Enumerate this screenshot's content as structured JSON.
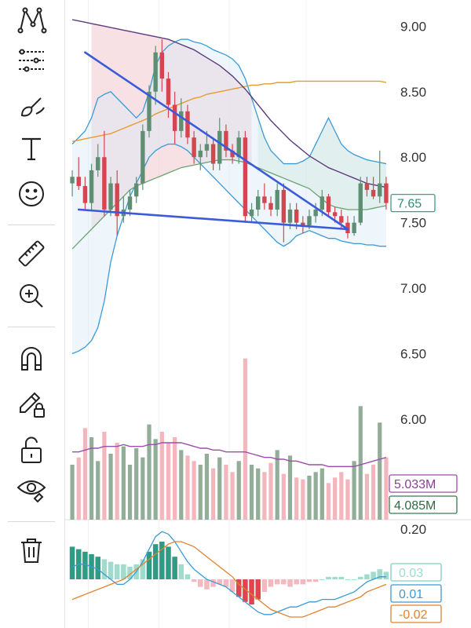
{
  "toolbar": {
    "tools": [
      {
        "icon": "pattern-tool-icon"
      },
      {
        "icon": "indicator-lines-icon"
      },
      {
        "icon": "brush-icon"
      },
      {
        "icon": "text-tool-icon"
      },
      {
        "icon": "emoji-icon"
      },
      {
        "icon": "ruler-icon"
      },
      {
        "icon": "zoom-in-icon"
      },
      {
        "icon": "magnet-icon"
      },
      {
        "icon": "pencil-lock-icon"
      },
      {
        "icon": "unlock-icon"
      },
      {
        "icon": "eye-icon"
      },
      {
        "icon": "trash-icon"
      }
    ]
  },
  "colors": {
    "up": "#5f8f72",
    "down": "#d3464f",
    "ma_orange": "#e79a2f",
    "ma_purple": "#5b3b7a",
    "bb_blue": "#3a9bd5",
    "trend_blue": "#3b5bd9",
    "cloud_red": "#f3c9cf",
    "cloud_green": "#cfe6d4",
    "vol_up": "#7f9f86",
    "vol_down": "#f2a9b2",
    "vol_ma": "#9b4fa8",
    "macd_line": "#3a9bd5",
    "signal_line": "#e0822e"
  },
  "chart_data": {
    "type": "candlestick",
    "price_axis": {
      "ticks": [
        "9.00",
        "8.50",
        "8.00",
        "7.50",
        "7.00",
        "6.50",
        "6.00"
      ],
      "range": [
        5.7,
        9.2
      ],
      "last_price": "7.65"
    },
    "candles": [
      [
        7.8,
        7.9,
        7.7,
        7.85
      ],
      [
        7.85,
        8.0,
        7.75,
        7.78
      ],
      [
        7.78,
        7.85,
        7.6,
        7.65
      ],
      [
        7.65,
        7.95,
        7.6,
        7.9
      ],
      [
        7.9,
        8.1,
        7.85,
        8.0
      ],
      [
        8.0,
        8.2,
        7.55,
        7.6
      ],
      [
        7.6,
        7.85,
        7.55,
        7.8
      ],
      [
        7.8,
        7.9,
        7.4,
        7.55
      ],
      [
        7.55,
        7.7,
        7.5,
        7.6
      ],
      [
        7.6,
        7.75,
        7.55,
        7.7
      ],
      [
        7.7,
        7.85,
        7.65,
        7.8
      ],
      [
        7.8,
        8.25,
        7.75,
        8.2
      ],
      [
        8.2,
        8.55,
        8.15,
        8.5
      ],
      [
        8.5,
        8.85,
        8.4,
        8.8
      ],
      [
        8.8,
        8.9,
        8.5,
        8.6
      ],
      [
        8.6,
        8.65,
        8.3,
        8.4
      ],
      [
        8.4,
        8.5,
        8.1,
        8.2
      ],
      [
        8.2,
        8.45,
        8.15,
        8.35
      ],
      [
        8.35,
        8.4,
        8.1,
        8.15
      ],
      [
        8.15,
        8.2,
        7.95,
        8.0
      ],
      [
        8.0,
        8.1,
        7.9,
        8.05
      ],
      [
        8.05,
        8.2,
        8.0,
        8.1
      ],
      [
        8.1,
        8.15,
        7.9,
        7.95
      ],
      [
        7.95,
        8.3,
        7.9,
        8.2
      ],
      [
        8.2,
        8.25,
        8.0,
        8.05
      ],
      [
        8.05,
        8.1,
        7.95,
        8.0
      ],
      [
        8.0,
        8.2,
        7.95,
        8.15
      ],
      [
        8.15,
        8.2,
        7.5,
        7.55
      ],
      [
        7.55,
        7.65,
        7.5,
        7.6
      ],
      [
        7.6,
        7.75,
        7.55,
        7.7
      ],
      [
        7.7,
        7.8,
        7.6,
        7.65
      ],
      [
        7.65,
        7.7,
        7.55,
        7.6
      ],
      [
        7.6,
        7.8,
        7.55,
        7.75
      ],
      [
        7.75,
        7.8,
        7.35,
        7.5
      ],
      [
        7.5,
        7.65,
        7.45,
        7.6
      ],
      [
        7.6,
        7.65,
        7.45,
        7.5
      ],
      [
        7.5,
        7.55,
        7.42,
        7.48
      ],
      [
        7.48,
        7.6,
        7.45,
        7.55
      ],
      [
        7.55,
        7.65,
        7.5,
        7.6
      ],
      [
        7.6,
        7.75,
        7.55,
        7.7
      ],
      [
        7.7,
        7.72,
        7.55,
        7.58
      ],
      [
        7.58,
        7.62,
        7.5,
        7.55
      ],
      [
        7.55,
        7.6,
        7.45,
        7.5
      ],
      [
        7.5,
        7.55,
        7.38,
        7.42
      ],
      [
        7.42,
        7.55,
        7.4,
        7.5
      ],
      [
        7.5,
        7.85,
        7.48,
        7.8
      ],
      [
        7.8,
        7.85,
        7.7,
        7.75
      ],
      [
        7.75,
        7.85,
        7.68,
        7.7
      ],
      [
        7.7,
        8.05,
        7.65,
        7.8
      ],
      [
        7.8,
        7.85,
        7.6,
        7.65
      ]
    ],
    "ma_orange": [
      8.12,
      8.13,
      8.14,
      8.15,
      8.16,
      8.17,
      8.18,
      8.2,
      8.22,
      8.24,
      8.26,
      8.28,
      8.3,
      8.33,
      8.35,
      8.37,
      8.39,
      8.41,
      8.43,
      8.45,
      8.46,
      8.48,
      8.49,
      8.5,
      8.51,
      8.52,
      8.53,
      8.54,
      8.55,
      8.55,
      8.56,
      8.56,
      8.57,
      8.57,
      8.57,
      8.58,
      8.58,
      8.58,
      8.58,
      8.58,
      8.58,
      8.58,
      8.58,
      8.58,
      8.58,
      8.58,
      8.58,
      8.58,
      8.58,
      8.57
    ],
    "ma_purple": [
      9.05,
      9.04,
      9.03,
      9.02,
      9.01,
      9.0,
      8.99,
      8.98,
      8.97,
      8.96,
      8.95,
      8.94,
      8.93,
      8.92,
      8.91,
      8.9,
      8.88,
      8.86,
      8.84,
      8.82,
      8.79,
      8.76,
      8.73,
      8.7,
      8.66,
      8.62,
      8.57,
      8.52,
      8.46,
      8.4,
      8.34,
      8.28,
      8.23,
      8.18,
      8.13,
      8.09,
      8.05,
      8.01,
      7.98,
      7.95,
      7.92,
      7.9,
      7.88,
      7.86,
      7.84,
      7.82,
      7.8,
      7.79,
      7.78,
      7.77
    ],
    "bb_upper": [
      8.1,
      8.15,
      8.2,
      8.3,
      8.45,
      8.48,
      8.5,
      8.45,
      8.4,
      8.35,
      8.3,
      8.35,
      8.5,
      8.7,
      8.8,
      8.85,
      8.88,
      8.9,
      8.9,
      8.88,
      8.87,
      8.85,
      8.82,
      8.8,
      8.78,
      8.75,
      8.7,
      8.6,
      8.45,
      8.3,
      8.15,
      8.05,
      8.0,
      7.95,
      7.95,
      7.95,
      7.97,
      8.0,
      8.1,
      8.2,
      8.3,
      8.2,
      8.1,
      8.05,
      8.02,
      8.0,
      7.98,
      7.97,
      7.96,
      7.95
    ],
    "bb_lower": [
      6.5,
      6.52,
      6.55,
      6.6,
      6.7,
      6.9,
      7.2,
      7.4,
      7.55,
      7.7,
      7.8,
      7.9,
      8.0,
      8.05,
      8.08,
      8.1,
      8.1,
      8.08,
      8.05,
      8.0,
      7.95,
      7.9,
      7.85,
      7.8,
      7.75,
      7.7,
      7.65,
      7.6,
      7.55,
      7.5,
      7.45,
      7.4,
      7.35,
      7.32,
      7.35,
      7.4,
      7.42,
      7.44,
      7.42,
      7.4,
      7.38,
      7.38,
      7.36,
      7.35,
      7.34,
      7.34,
      7.33,
      7.33,
      7.32,
      7.32
    ],
    "bb_mid": [
      7.3,
      7.35,
      7.4,
      7.45,
      7.5,
      7.55,
      7.6,
      7.65,
      7.7,
      7.75,
      7.78,
      7.8,
      7.82,
      7.84,
      7.86,
      7.88,
      7.9,
      7.92,
      7.93,
      7.94,
      7.95,
      7.96,
      7.97,
      7.98,
      7.98,
      7.98,
      7.97,
      7.96,
      7.94,
      7.92,
      7.9,
      7.88,
      7.86,
      7.84,
      7.82,
      7.8,
      7.78,
      7.76,
      7.72,
      7.68,
      7.64,
      7.62,
      7.61,
      7.6,
      7.6,
      7.6,
      7.6,
      7.61,
      7.62,
      7.63
    ],
    "trendline_upper": [
      [
        2,
        8.8
      ],
      [
        43,
        7.45
      ]
    ],
    "trendline_lower": [
      [
        1,
        7.6
      ],
      [
        43,
        7.45
      ]
    ],
    "volume_labels": [
      "5.033M",
      "4.085M"
    ],
    "volume": [
      3.0,
      3.4,
      5.0,
      4.5,
      3.2,
      4.8,
      3.6,
      4.2,
      4.0,
      3.0,
      3.9,
      3.4,
      5.2,
      4.4,
      4.8,
      4.2,
      4.5,
      3.8,
      3.5,
      3.2,
      3.0,
      3.6,
      2.8,
      3.4,
      3.0,
      2.6,
      3.2,
      8.8,
      3.0,
      2.8,
      2.6,
      3.1,
      3.8,
      2.5,
      3.5,
      2.3,
      2.2,
      2.4,
      2.6,
      2.8,
      2.0,
      2.3,
      2.6,
      2.2,
      3.2,
      6.2,
      2.5,
      3.0,
      5.3,
      3.4
    ],
    "volume_up": [
      true,
      false,
      false,
      true,
      true,
      false,
      true,
      false,
      true,
      true,
      true,
      true,
      true,
      true,
      false,
      false,
      false,
      true,
      false,
      false,
      true,
      true,
      false,
      true,
      false,
      false,
      true,
      false,
      true,
      true,
      false,
      false,
      true,
      false,
      true,
      false,
      false,
      true,
      true,
      true,
      false,
      false,
      false,
      false,
      true,
      true,
      false,
      false,
      true,
      false
    ],
    "volume_ma": [
      3.7,
      3.7,
      3.8,
      3.9,
      3.9,
      4.0,
      4.0,
      4.0,
      4.1,
      4.0,
      4.0,
      4.0,
      4.1,
      4.1,
      4.2,
      4.2,
      4.2,
      4.2,
      4.1,
      4.0,
      3.9,
      3.9,
      3.8,
      3.8,
      3.7,
      3.7,
      3.7,
      3.7,
      3.6,
      3.5,
      3.4,
      3.4,
      3.3,
      3.3,
      3.2,
      3.2,
      3.1,
      3.0,
      3.0,
      3.0,
      2.9,
      2.9,
      2.9,
      2.9,
      2.9,
      3.0,
      3.1,
      3.2,
      3.3,
      3.4
    ],
    "macd_axis": {
      "tick": "0.20",
      "labels": [
        "0.03",
        "0.01",
        "-0.02"
      ]
    },
    "macd_hist": [
      0.13,
      0.12,
      0.11,
      0.1,
      0.09,
      0.08,
      0.07,
      0.06,
      0.06,
      0.05,
      0.06,
      0.08,
      0.11,
      0.14,
      0.15,
      0.13,
      0.09,
      0.06,
      0.02,
      -0.01,
      -0.03,
      -0.04,
      -0.03,
      -0.02,
      -0.03,
      -0.05,
      -0.07,
      -0.09,
      -0.1,
      -0.08,
      -0.05,
      -0.03,
      -0.02,
      -0.02,
      -0.03,
      -0.02,
      -0.02,
      -0.01,
      -0.01,
      0.0,
      0.01,
      0.01,
      0.01,
      0.0,
      0.0,
      0.01,
      0.02,
      0.03,
      0.04,
      0.03
    ],
    "macd_line": [
      0.05,
      0.06,
      0.06,
      0.05,
      0.04,
      0.02,
      0.0,
      -0.02,
      -0.02,
      0.0,
      0.03,
      0.07,
      0.12,
      0.17,
      0.19,
      0.18,
      0.15,
      0.11,
      0.07,
      0.04,
      0.02,
      0.0,
      -0.01,
      -0.02,
      -0.03,
      -0.05,
      -0.07,
      -0.09,
      -0.11,
      -0.13,
      -0.14,
      -0.14,
      -0.13,
      -0.12,
      -0.11,
      -0.11,
      -0.1,
      -0.09,
      -0.09,
      -0.08,
      -0.08,
      -0.08,
      -0.07,
      -0.06,
      -0.05,
      -0.03,
      -0.01,
      0.0,
      0.01,
      0.01
    ],
    "signal_line": [
      -0.08,
      -0.07,
      -0.06,
      -0.05,
      -0.04,
      -0.03,
      -0.02,
      -0.01,
      0.0,
      0.02,
      0.04,
      0.06,
      0.08,
      0.1,
      0.12,
      0.14,
      0.15,
      0.15,
      0.14,
      0.13,
      0.11,
      0.09,
      0.07,
      0.05,
      0.03,
      0.01,
      -0.02,
      -0.04,
      -0.06,
      -0.08,
      -0.1,
      -0.12,
      -0.13,
      -0.14,
      -0.15,
      -0.15,
      -0.15,
      -0.14,
      -0.13,
      -0.12,
      -0.11,
      -0.11,
      -0.1,
      -0.09,
      -0.08,
      -0.07,
      -0.05,
      -0.04,
      -0.03,
      -0.02
    ]
  }
}
